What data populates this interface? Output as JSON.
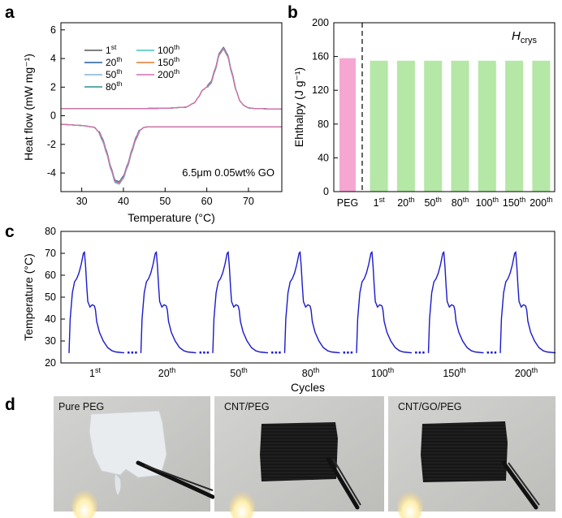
{
  "panels": {
    "a": "a",
    "b": "b",
    "c": "c",
    "d": "d"
  },
  "chart_data": [
    {
      "panel": "a",
      "type": "line",
      "xlabel": "Temperature (°C)",
      "ylabel": "Heat flow (mW mg⁻¹)",
      "xlim": [
        25,
        78
      ],
      "ylim": [
        -5.3,
        6.5
      ],
      "xticks": [
        30,
        40,
        50,
        60,
        70
      ],
      "yticks": [
        -4,
        -2,
        0,
        2,
        4,
        6
      ],
      "annotation": "6.5μm 0.05wt% GO",
      "legend_position": "top-left",
      "series": [
        {
          "name": "1st",
          "color": "#555555",
          "jitter": 0.0
        },
        {
          "name": "20th",
          "color": "#1f5fa8",
          "jitter": 0.1
        },
        {
          "name": "50th",
          "color": "#7eb4d6",
          "jitter": -0.08
        },
        {
          "name": "80th",
          "color": "#2a8f8f",
          "jitter": 0.05
        },
        {
          "name": "100th",
          "color": "#3fc7b3",
          "jitter": -0.04
        },
        {
          "name": "150th",
          "color": "#e07a2e",
          "jitter": 0.03
        },
        {
          "name": "200th",
          "color": "#d46fb3",
          "jitter": 0.0
        }
      ],
      "heating_curve": {
        "x": [
          25,
          30,
          33,
          34,
          35,
          36,
          37,
          38,
          39,
          40,
          41,
          42,
          43,
          44,
          45,
          46,
          48,
          55,
          65,
          78
        ],
        "y": [
          -0.6,
          -0.68,
          -0.8,
          -1.1,
          -1.7,
          -2.6,
          -3.7,
          -4.6,
          -4.7,
          -4.3,
          -3.5,
          -2.5,
          -1.6,
          -1.0,
          -0.8,
          -0.78,
          -0.77,
          -0.77,
          -0.77,
          -0.77
        ]
      },
      "cooling_curve": {
        "x": [
          25,
          40,
          50,
          55,
          57,
          58,
          59,
          60,
          61,
          62,
          63,
          64,
          65,
          66,
          67,
          68,
          69,
          70,
          72,
          75,
          78
        ],
        "y": [
          0.5,
          0.5,
          0.52,
          0.6,
          0.9,
          1.3,
          1.8,
          2.0,
          2.3,
          3.2,
          4.3,
          4.7,
          4.2,
          3.0,
          1.8,
          1.0,
          0.7,
          0.55,
          0.5,
          0.48,
          0.48
        ]
      }
    },
    {
      "panel": "b",
      "type": "bar",
      "ylabel": "Ehthalpy (J g⁻¹)",
      "ylim": [
        0,
        200
      ],
      "yticks": [
        0,
        40,
        80,
        120,
        160,
        200
      ],
      "annotation": "H",
      "annotation_sub": "crys",
      "categories": [
        "PEG",
        "1st",
        "20th",
        "50th",
        "80th",
        "100th",
        "150th",
        "200th"
      ],
      "values": [
        158,
        155,
        155,
        155,
        155,
        155,
        155,
        155
      ],
      "colors": [
        "#f5a6d3",
        "#b5e7a6",
        "#b5e7a6",
        "#b5e7a6",
        "#b5e7a6",
        "#b5e7a6",
        "#b5e7a6",
        "#b5e7a6"
      ],
      "divider_after_category": "PEG"
    },
    {
      "panel": "c",
      "type": "line",
      "xlabel": "Cycles",
      "ylabel": "Temperature (°C)",
      "ylim": [
        20,
        80
      ],
      "yticks": [
        20,
        30,
        40,
        50,
        60,
        70,
        80
      ],
      "line_color": "#1a1acc",
      "cycle_labels": [
        "1st",
        "20th",
        "50th",
        "80th",
        "100th",
        "150th",
        "200th"
      ],
      "cycle_profile": {
        "t": [
          0.0,
          0.02,
          0.06,
          0.1,
          0.14,
          0.18,
          0.22,
          0.26,
          0.28,
          0.3,
          0.32,
          0.34,
          0.38,
          0.42,
          0.46,
          0.48,
          0.5,
          0.55,
          0.62,
          0.7,
          0.78,
          0.85,
          0.92,
          1.0
        ],
        "y": [
          24.5,
          40,
          52,
          57,
          58.5,
          61,
          65,
          70,
          70.5,
          64,
          55,
          48,
          45.5,
          46.5,
          46,
          44,
          39,
          34,
          30,
          27,
          25.5,
          25,
          24.8,
          24.6
        ]
      },
      "gap_marker": "⋯"
    }
  ],
  "photos": [
    {
      "label": "Pure PEG",
      "sample": "white"
    },
    {
      "label": "CNT/PEG",
      "sample": "black"
    },
    {
      "label": "CNT/GO/PEG",
      "sample": "black"
    }
  ],
  "colors": {
    "axis": "#000000",
    "photo_bg": "#c8c8c6",
    "flame": "#fff3c4"
  }
}
